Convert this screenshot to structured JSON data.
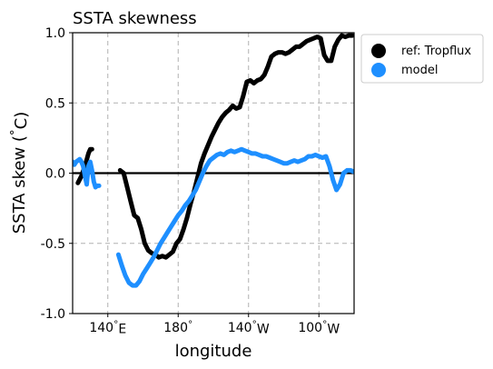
{
  "chart_data": {
    "type": "line",
    "title": "SSTA skewness",
    "xlabel": "longitude",
    "ylabel": "SSTA skew ($^\\circ$C)",
    "xlim": [
      120,
      280
    ],
    "ylim": [
      -1.0,
      1.0
    ],
    "x_ticks": [
      {
        "value": 140,
        "label": "140$^\\circ$E"
      },
      {
        "value": 180,
        "label": "180$^\\circ$"
      },
      {
        "value": 220,
        "label": "140$^\\circ$W"
      },
      {
        "value": 260,
        "label": "100$^\\circ$W"
      }
    ],
    "y_ticks": [
      {
        "value": -1.0,
        "label": "-1.0"
      },
      {
        "value": -0.5,
        "label": "-0.5"
      },
      {
        "value": 0.0,
        "label": "0.0"
      },
      {
        "value": 0.5,
        "label": "0.5"
      },
      {
        "value": 1.0,
        "label": "1.0"
      }
    ],
    "grid": "dashed",
    "zero_line": true,
    "legend_position": "outside-upper-right",
    "series": [
      {
        "name": "ref: Tropflux",
        "color": "#000000",
        "segments": [
          {
            "x": [
              123,
              125,
              127,
              129,
              130,
              131
            ],
            "y": [
              -0.07,
              -0.02,
              0.05,
              0.14,
              0.17,
              0.17
            ]
          },
          {
            "x": [
              147,
              149,
              151,
              153,
              155,
              157,
              159,
              161,
              163,
              165,
              167,
              169,
              171,
              173,
              175,
              177,
              179,
              181,
              183,
              185,
              187,
              189,
              191,
              193,
              195,
              197,
              199,
              201,
              203,
              205,
              207,
              209,
              211,
              213,
              215,
              217,
              219,
              221,
              223,
              225,
              227,
              229,
              231,
              233,
              235,
              237,
              239,
              241,
              243,
              245,
              247,
              249,
              251,
              253,
              255,
              257,
              259,
              261,
              263,
              265,
              267,
              269,
              271,
              273,
              275,
              277,
              279
            ],
            "y": [
              0.02,
              0.0,
              -0.1,
              -0.2,
              -0.3,
              -0.32,
              -0.4,
              -0.5,
              -0.55,
              -0.57,
              -0.58,
              -0.6,
              -0.59,
              -0.6,
              -0.58,
              -0.56,
              -0.5,
              -0.47,
              -0.4,
              -0.32,
              -0.22,
              -0.13,
              -0.03,
              0.07,
              0.14,
              0.2,
              0.26,
              0.31,
              0.36,
              0.4,
              0.43,
              0.45,
              0.48,
              0.46,
              0.47,
              0.55,
              0.65,
              0.66,
              0.64,
              0.66,
              0.67,
              0.7,
              0.76,
              0.83,
              0.85,
              0.86,
              0.86,
              0.85,
              0.86,
              0.88,
              0.9,
              0.9,
              0.92,
              0.94,
              0.95,
              0.96,
              0.97,
              0.96,
              0.84,
              0.8,
              0.8,
              0.9,
              0.95,
              0.98,
              0.97,
              0.98,
              0.98
            ]
          }
        ]
      },
      {
        "name": "model",
        "color": "#1e8fff",
        "segments": [
          {
            "x": [
              120,
              121,
              122,
              123,
              124,
              125,
              126,
              127,
              128,
              129,
              130,
              131,
              132,
              133,
              134,
              135
            ],
            "y": [
              0.08,
              0.06,
              0.08,
              0.09,
              0.1,
              0.08,
              0.05,
              -0.02,
              -0.08,
              0.05,
              0.08,
              0.02,
              -0.06,
              -0.1,
              -0.09,
              -0.09
            ]
          },
          {
            "x": [
              146,
              148,
              150,
              152,
              154,
              156,
              158,
              160,
              162,
              164,
              166,
              168,
              170,
              172,
              174,
              176,
              178,
              180,
              182,
              184,
              186,
              188,
              190,
              192,
              194,
              196,
              198,
              200,
              202,
              204,
              206,
              208,
              210,
              212,
              214,
              216,
              218,
              220,
              222,
              224,
              226,
              228,
              230,
              232,
              234,
              236,
              238,
              240,
              242,
              244,
              246,
              248,
              250,
              252,
              254,
              256,
              258,
              260,
              262,
              264,
              266,
              268,
              270,
              272,
              274,
              276,
              278,
              280
            ],
            "y": [
              -0.58,
              -0.66,
              -0.73,
              -0.78,
              -0.8,
              -0.8,
              -0.77,
              -0.72,
              -0.68,
              -0.64,
              -0.6,
              -0.55,
              -0.5,
              -0.46,
              -0.42,
              -0.38,
              -0.34,
              -0.3,
              -0.27,
              -0.23,
              -0.2,
              -0.16,
              -0.12,
              -0.06,
              0.0,
              0.05,
              0.09,
              0.11,
              0.13,
              0.14,
              0.13,
              0.15,
              0.16,
              0.15,
              0.16,
              0.17,
              0.16,
              0.15,
              0.14,
              0.14,
              0.13,
              0.12,
              0.12,
              0.11,
              0.1,
              0.09,
              0.08,
              0.07,
              0.07,
              0.08,
              0.09,
              0.08,
              0.09,
              0.1,
              0.12,
              0.12,
              0.13,
              0.12,
              0.11,
              0.12,
              0.05,
              -0.05,
              -0.12,
              -0.08,
              0.0,
              0.02,
              0.02,
              0.01
            ]
          }
        ]
      }
    ]
  }
}
